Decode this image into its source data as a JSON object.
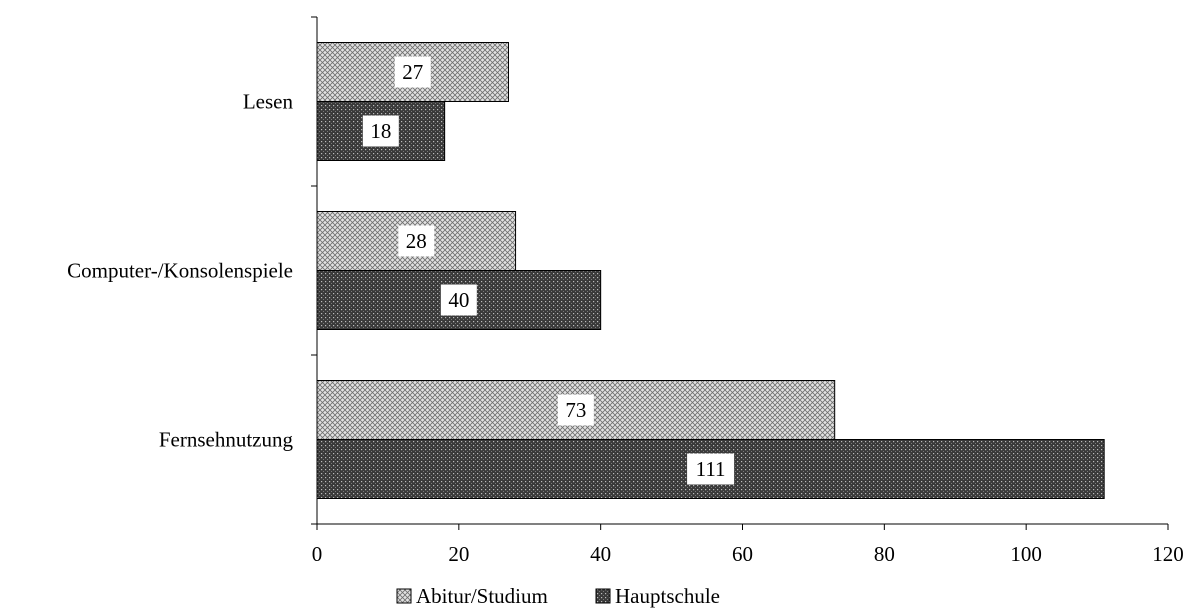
{
  "chart_data": {
    "type": "bar",
    "orientation": "horizontal",
    "categories": [
      "Lesen",
      "Computer-/Konsolenspiele",
      "Fernsehnutzung"
    ],
    "series": [
      {
        "name": "Abitur/Studium",
        "values": [
          27,
          28,
          73
        ],
        "pattern": "light-crosshatch"
      },
      {
        "name": "Hauptschule",
        "values": [
          18,
          40,
          111
        ],
        "pattern": "dark-dots"
      }
    ],
    "xlim": [
      0,
      120
    ],
    "xticks": [
      0,
      20,
      40,
      60,
      80,
      100,
      120
    ],
    "grid": false,
    "data_labels": true,
    "legend_position": "bottom"
  }
}
